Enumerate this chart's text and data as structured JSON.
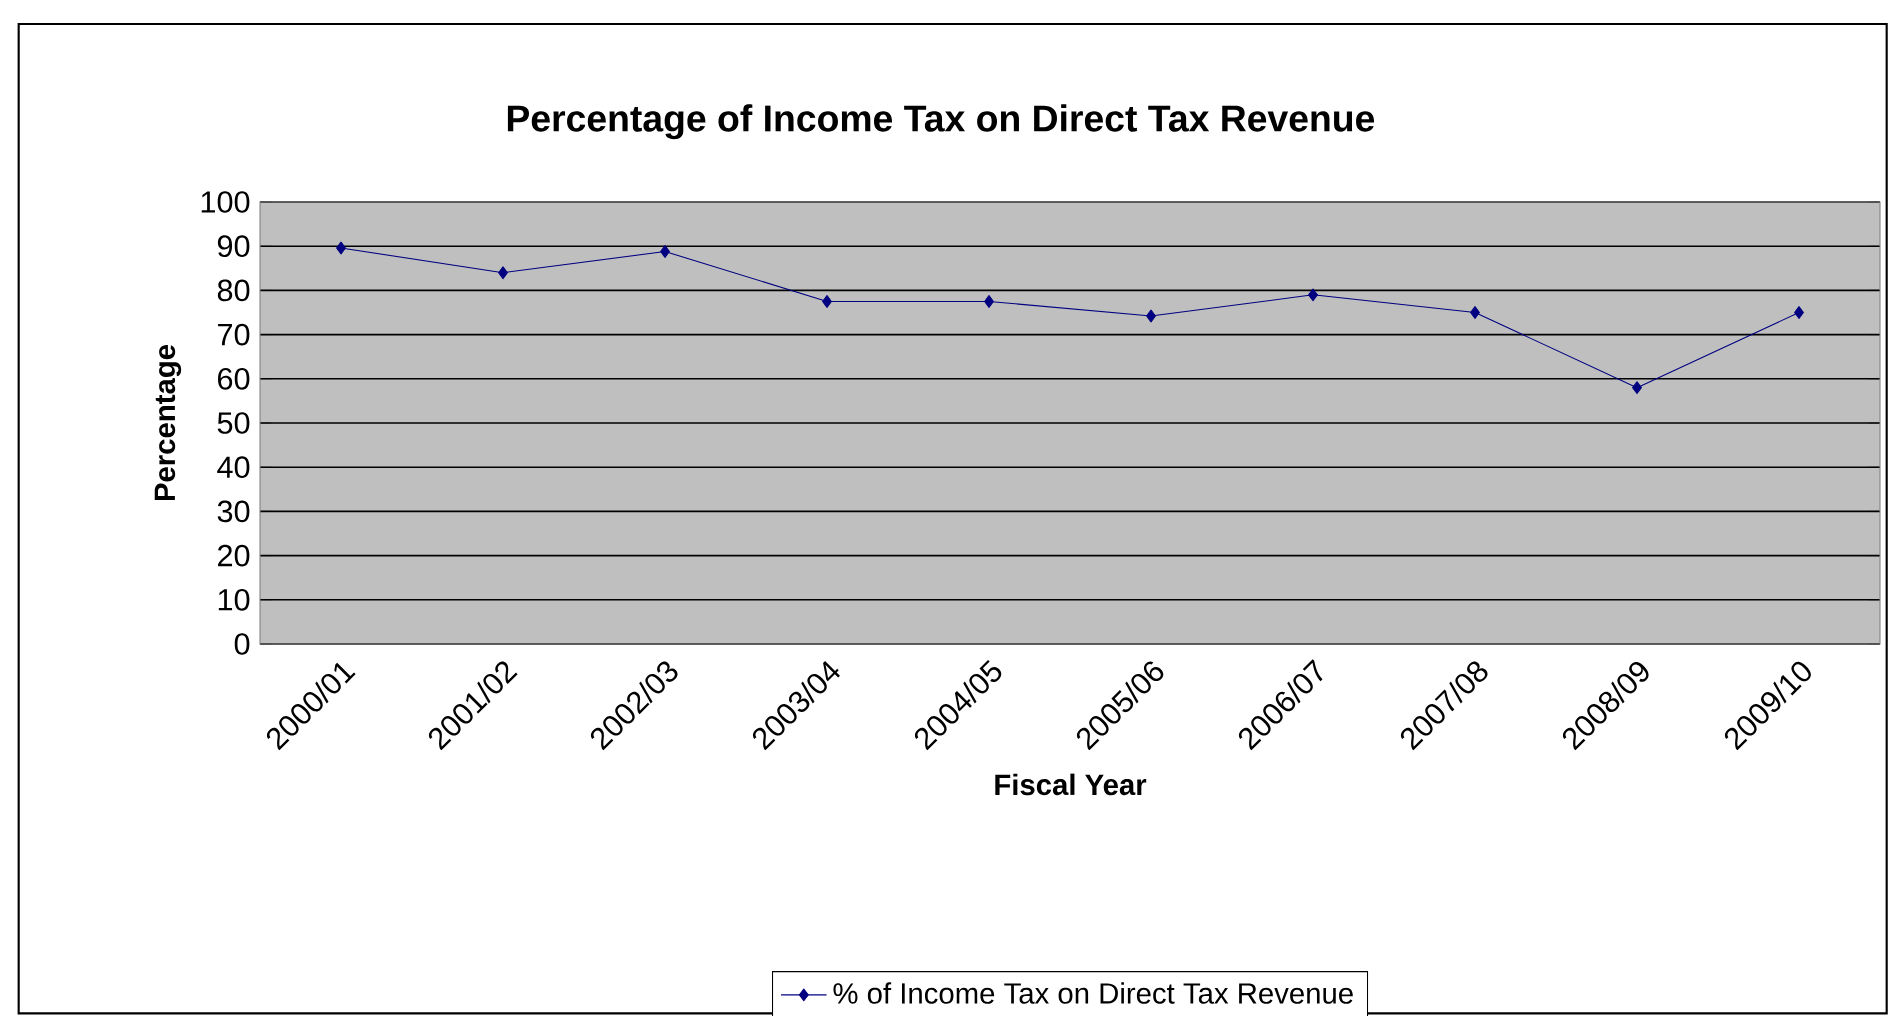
{
  "chart_data": {
    "type": "line",
    "title": "Percentage of Income Tax on Direct Tax Revenue",
    "xlabel": "Fiscal Year",
    "ylabel": "Percentage",
    "categories": [
      "2000/01",
      "2001/02",
      "2002/03",
      "2003/04",
      "2004/05",
      "2005/06",
      "2006/07",
      "2007/08",
      "2008/09",
      "2009/10"
    ],
    "series": [
      {
        "name": "% of Income Tax on Direct Tax Revenue",
        "color": "#000080",
        "values": [
          89.6,
          84,
          88.8,
          77.5,
          77.5,
          74.2,
          79,
          75,
          58,
          75
        ]
      }
    ],
    "ylim": [
      0,
      100
    ],
    "yticks": [
      0,
      10,
      20,
      30,
      40,
      50,
      60,
      70,
      80,
      90,
      100
    ],
    "grid": "y",
    "legend": "bottom",
    "marker": "diamond",
    "line_style": "solid"
  }
}
